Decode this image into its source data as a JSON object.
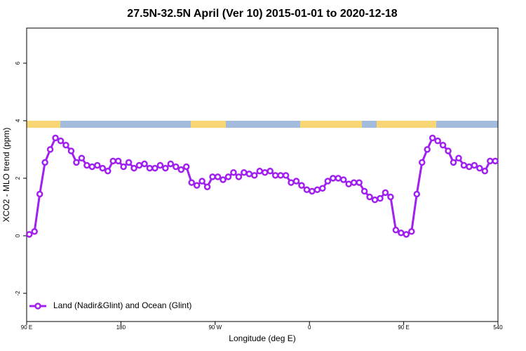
{
  "chart_data": {
    "type": "line",
    "title": "27.5N-32.5N April (Ver 10)   2015-01-01 to 2020-12-18",
    "x_label": "Longitude (deg E)",
    "y_label": "XCO2 - MLO trend (ppm)",
    "x": [
      92.5,
      97.5,
      102.5,
      107.5,
      112.5,
      117.5,
      122.5,
      127.5,
      132.5,
      137.5,
      142.5,
      147.5,
      152.5,
      157.5,
      162.5,
      167.5,
      172.5,
      177.5,
      182.5,
      187.5,
      192.5,
      197.5,
      202.5,
      207.5,
      212.5,
      217.5,
      222.5,
      227.5,
      232.5,
      237.5,
      242.5,
      247.5,
      252.5,
      257.5,
      262.5,
      267.5,
      272.5,
      277.5,
      282.5,
      287.5,
      292.5,
      297.5,
      302.5,
      307.5,
      312.5,
      317.5,
      322.5,
      327.5,
      332.5,
      337.5,
      342.5,
      347.5,
      352.5,
      357.5,
      362.5,
      367.5,
      372.5,
      377.5,
      382.5,
      387.5,
      392.5,
      397.5,
      402.5,
      407.5,
      412.5,
      417.5,
      422.5,
      427.5,
      432.5,
      437.5,
      442.5,
      447.5,
      452.5,
      457.5,
      462.5,
      467.5,
      472.5,
      477.5,
      482.5,
      487.5,
      492.5,
      497.5,
      502.5,
      507.5,
      512.5,
      517.5,
      522.5,
      527.5,
      532.5,
      537.5
    ],
    "series": [
      {
        "name": "Land (Nadir&Glint) and Ocean (Glint)",
        "color": "#a020f0",
        "values": [
          0.05,
          0.15,
          1.45,
          2.55,
          3.0,
          3.4,
          3.3,
          3.15,
          2.95,
          2.55,
          2.7,
          2.45,
          2.4,
          2.45,
          2.35,
          2.25,
          2.6,
          2.6,
          2.4,
          2.55,
          2.35,
          2.45,
          2.5,
          2.35,
          2.35,
          2.45,
          2.35,
          2.5,
          2.4,
          2.3,
          2.4,
          1.85,
          1.75,
          1.9,
          1.7,
          2.05,
          2.05,
          1.95,
          2.05,
          2.2,
          2.05,
          2.2,
          2.15,
          2.1,
          2.25,
          2.2,
          2.25,
          2.1,
          2.1,
          2.1,
          1.85,
          1.9,
          1.75,
          1.6,
          1.55,
          1.6,
          1.65,
          1.9,
          2.0,
          2.0,
          1.95,
          1.8,
          1.85,
          1.85,
          1.55,
          1.35,
          1.25,
          1.3,
          1.5,
          1.35,
          0.2,
          0.1,
          0.05,
          0.15,
          1.45,
          2.55,
          3.0,
          3.4,
          3.3,
          3.15,
          2.95,
          2.55,
          2.7,
          2.45,
          2.4,
          2.45,
          2.35,
          2.25,
          2.6,
          2.6
        ]
      }
    ],
    "xlim": [
      90,
      540
    ],
    "xticks": [
      {
        "value": 90,
        "label": "90 E"
      },
      180,
      {
        "value": 270,
        "label": "90 W"
      },
      {
        "value": 360,
        "label": "0"
      },
      {
        "value": 450,
        "label": "90 E"
      },
      540
    ],
    "ylim": [
      -2.98,
      7.22
    ],
    "yticks": [
      -2,
      0,
      2,
      4,
      6
    ],
    "legend": "bottom-left"
  }
}
